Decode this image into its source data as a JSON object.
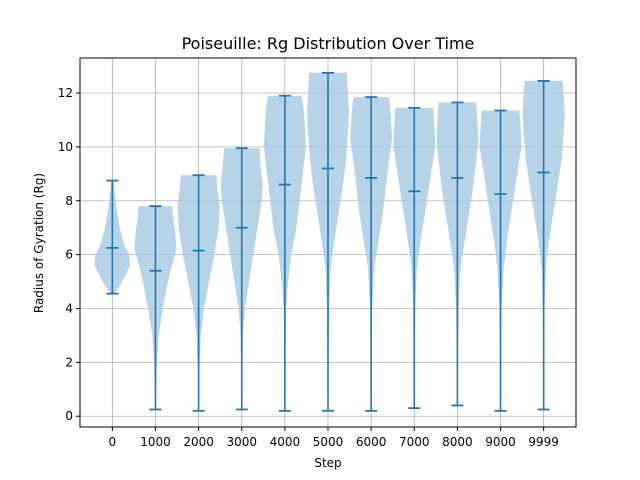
{
  "chart_data": {
    "type": "violin",
    "title": "Poiseuille: Rg Distribution Over Time",
    "xlabel": "Step",
    "ylabel": "Radius of Gyration (Rg)",
    "ylim": [
      -0.4,
      13.3
    ],
    "yticks": [
      0,
      2,
      4,
      6,
      8,
      10,
      12
    ],
    "grid": true,
    "colors": {
      "body": "#a9cbe3",
      "line": "#1f77b4",
      "grid": "#b0b0b0"
    },
    "categories": [
      "0",
      "1000",
      "2000",
      "3000",
      "4000",
      "5000",
      "6000",
      "7000",
      "8000",
      "9000",
      "9999"
    ],
    "series": [
      {
        "min": 4.55,
        "mean": 6.25,
        "max": 8.75
      },
      {
        "min": 0.25,
        "mean": 5.4,
        "max": 7.8
      },
      {
        "min": 0.2,
        "mean": 6.15,
        "max": 8.95
      },
      {
        "min": 0.25,
        "mean": 7.0,
        "max": 9.95
      },
      {
        "min": 0.2,
        "mean": 8.6,
        "max": 11.9
      },
      {
        "min": 0.2,
        "mean": 9.2,
        "max": 12.75
      },
      {
        "min": 0.2,
        "mean": 8.85,
        "max": 11.85
      },
      {
        "min": 0.3,
        "mean": 8.35,
        "max": 11.45
      },
      {
        "min": 0.4,
        "mean": 8.85,
        "max": 11.65
      },
      {
        "min": 0.2,
        "mean": 8.25,
        "max": 11.35
      },
      {
        "min": 0.25,
        "mean": 9.05,
        "max": 12.45
      }
    ],
    "density_profiles": [
      [
        [
          4.55,
          0.08
        ],
        [
          4.8,
          0.32
        ],
        [
          5.2,
          0.6
        ],
        [
          5.6,
          0.85
        ],
        [
          6.0,
          0.8
        ],
        [
          6.4,
          0.55
        ],
        [
          7.0,
          0.35
        ],
        [
          7.6,
          0.22
        ],
        [
          8.2,
          0.12
        ],
        [
          8.75,
          0.05
        ]
      ],
      [
        [
          0.25,
          0.02
        ],
        [
          1.0,
          0.04
        ],
        [
          2.0,
          0.07
        ],
        [
          3.0,
          0.15
        ],
        [
          4.0,
          0.35
        ],
        [
          4.8,
          0.55
        ],
        [
          5.5,
          0.75
        ],
        [
          6.2,
          1.0
        ],
        [
          6.8,
          0.95
        ],
        [
          7.3,
          0.85
        ],
        [
          7.8,
          0.8
        ]
      ],
      [
        [
          0.2,
          0.02
        ],
        [
          1.0,
          0.03
        ],
        [
          2.0,
          0.05
        ],
        [
          3.0,
          0.1
        ],
        [
          4.0,
          0.25
        ],
        [
          5.0,
          0.5
        ],
        [
          6.0,
          0.75
        ],
        [
          7.0,
          0.95
        ],
        [
          7.8,
          1.0
        ],
        [
          8.4,
          0.9
        ],
        [
          8.95,
          0.85
        ]
      ],
      [
        [
          0.25,
          0.02
        ],
        [
          1.5,
          0.03
        ],
        [
          3.0,
          0.06
        ],
        [
          4.0,
          0.15
        ],
        [
          5.0,
          0.35
        ],
        [
          6.0,
          0.55
        ],
        [
          7.0,
          0.75
        ],
        [
          8.0,
          0.95
        ],
        [
          8.6,
          1.0
        ],
        [
          9.3,
          0.9
        ],
        [
          9.95,
          0.85
        ]
      ],
      [
        [
          0.2,
          0.01
        ],
        [
          2.0,
          0.02
        ],
        [
          4.0,
          0.06
        ],
        [
          5.0,
          0.15
        ],
        [
          6.0,
          0.3
        ],
        [
          7.0,
          0.55
        ],
        [
          8.0,
          0.7
        ],
        [
          9.0,
          0.85
        ],
        [
          10.0,
          1.0
        ],
        [
          10.8,
          0.95
        ],
        [
          11.4,
          0.9
        ],
        [
          11.9,
          0.8
        ]
      ],
      [
        [
          0.2,
          0.01
        ],
        [
          2.0,
          0.02
        ],
        [
          4.0,
          0.05
        ],
        [
          5.5,
          0.12
        ],
        [
          6.5,
          0.3
        ],
        [
          7.5,
          0.5
        ],
        [
          8.5,
          0.7
        ],
        [
          9.5,
          0.85
        ],
        [
          10.5,
          0.95
        ],
        [
          11.3,
          1.0
        ],
        [
          12.0,
          0.95
        ],
        [
          12.75,
          0.9
        ]
      ],
      [
        [
          0.2,
          0.01
        ],
        [
          2.0,
          0.02
        ],
        [
          4.0,
          0.05
        ],
        [
          5.5,
          0.15
        ],
        [
          6.5,
          0.35
        ],
        [
          7.5,
          0.55
        ],
        [
          8.5,
          0.7
        ],
        [
          9.5,
          0.85
        ],
        [
          10.3,
          1.0
        ],
        [
          11.0,
          0.95
        ],
        [
          11.5,
          0.9
        ],
        [
          11.85,
          0.85
        ]
      ],
      [
        [
          0.3,
          0.01
        ],
        [
          2.0,
          0.02
        ],
        [
          4.0,
          0.05
        ],
        [
          5.5,
          0.12
        ],
        [
          6.5,
          0.3
        ],
        [
          7.5,
          0.5
        ],
        [
          8.5,
          0.7
        ],
        [
          9.3,
          0.85
        ],
        [
          10.0,
          1.0
        ],
        [
          10.8,
          0.95
        ],
        [
          11.45,
          0.9
        ]
      ],
      [
        [
          0.4,
          0.01
        ],
        [
          2.0,
          0.02
        ],
        [
          4.0,
          0.06
        ],
        [
          5.5,
          0.15
        ],
        [
          6.5,
          0.35
        ],
        [
          7.5,
          0.55
        ],
        [
          8.5,
          0.75
        ],
        [
          9.5,
          0.9
        ],
        [
          10.3,
          1.0
        ],
        [
          11.0,
          0.95
        ],
        [
          11.65,
          0.9
        ]
      ],
      [
        [
          0.2,
          0.01
        ],
        [
          2.0,
          0.02
        ],
        [
          4.0,
          0.05
        ],
        [
          5.5,
          0.15
        ],
        [
          6.5,
          0.3
        ],
        [
          7.5,
          0.5
        ],
        [
          8.5,
          0.7
        ],
        [
          9.3,
          0.85
        ],
        [
          10.0,
          1.0
        ],
        [
          10.8,
          0.95
        ],
        [
          11.35,
          0.9
        ]
      ],
      [
        [
          0.25,
          0.01
        ],
        [
          2.0,
          0.02
        ],
        [
          4.0,
          0.04
        ],
        [
          5.5,
          0.1
        ],
        [
          6.5,
          0.25
        ],
        [
          7.5,
          0.45
        ],
        [
          8.5,
          0.65
        ],
        [
          9.5,
          0.85
        ],
        [
          10.5,
          0.95
        ],
        [
          11.3,
          1.0
        ],
        [
          12.0,
          0.95
        ],
        [
          12.45,
          0.9
        ]
      ]
    ]
  }
}
